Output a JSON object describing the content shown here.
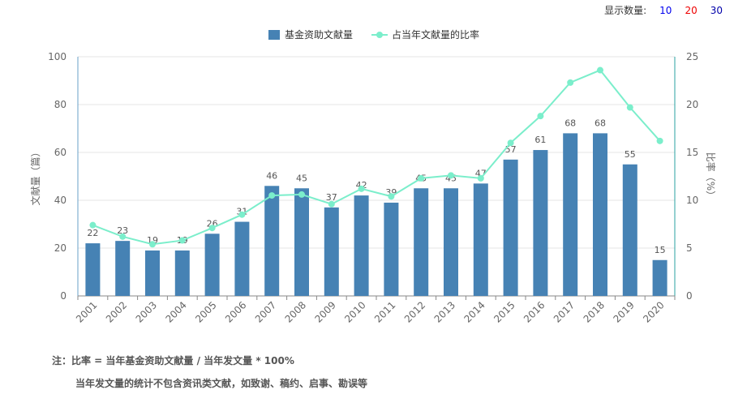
{
  "controls": {
    "label": "显示数量:",
    "options": [
      {
        "label": "10",
        "color": "#0000ee"
      },
      {
        "label": "20",
        "color": "#ee0000"
      },
      {
        "label": "30",
        "color": "#0000aa"
      }
    ]
  },
  "chart_data": {
    "type": "bar+line",
    "categories": [
      "2001",
      "2002",
      "2003",
      "2004",
      "2005",
      "2006",
      "2007",
      "2008",
      "2009",
      "2010",
      "2011",
      "2012",
      "2013",
      "2014",
      "2015",
      "2016",
      "2017",
      "2018",
      "2019",
      "2020"
    ],
    "series": [
      {
        "name": "基金资助文献量",
        "type": "bar",
        "axis": "left",
        "color": "#4682b4",
        "values": [
          22,
          23,
          19,
          19,
          26,
          31,
          46,
          45,
          37,
          42,
          39,
          45,
          45,
          47,
          57,
          61,
          68,
          68,
          55,
          15
        ]
      },
      {
        "name": "占当年文献量的比率",
        "type": "line",
        "axis": "right",
        "color": "#7beecb",
        "values": [
          7.4,
          6.2,
          5.4,
          5.8,
          7.1,
          8.5,
          10.5,
          10.6,
          9.6,
          11.2,
          10.4,
          12.3,
          12.6,
          12.3,
          16.0,
          18.8,
          22.3,
          23.6,
          19.7,
          16.2
        ]
      }
    ],
    "yLeft": {
      "min": 0,
      "max": 100,
      "ticks": [
        0,
        20,
        40,
        60,
        80,
        100
      ],
      "label": "文献量（篇）"
    },
    "yRight": {
      "min": 0,
      "max": 25,
      "ticks": [
        0,
        5,
        10,
        15,
        20,
        25
      ],
      "label": "比率（%）"
    },
    "grid": true,
    "legend_position": "top-center"
  },
  "notes": {
    "line1": "注：比率 = 当年基金资助文献量 / 当年发文量 * 100%",
    "line2": "当年发文量的统计不包含资讯类文献，如致谢、稿约、启事、勘误等"
  }
}
